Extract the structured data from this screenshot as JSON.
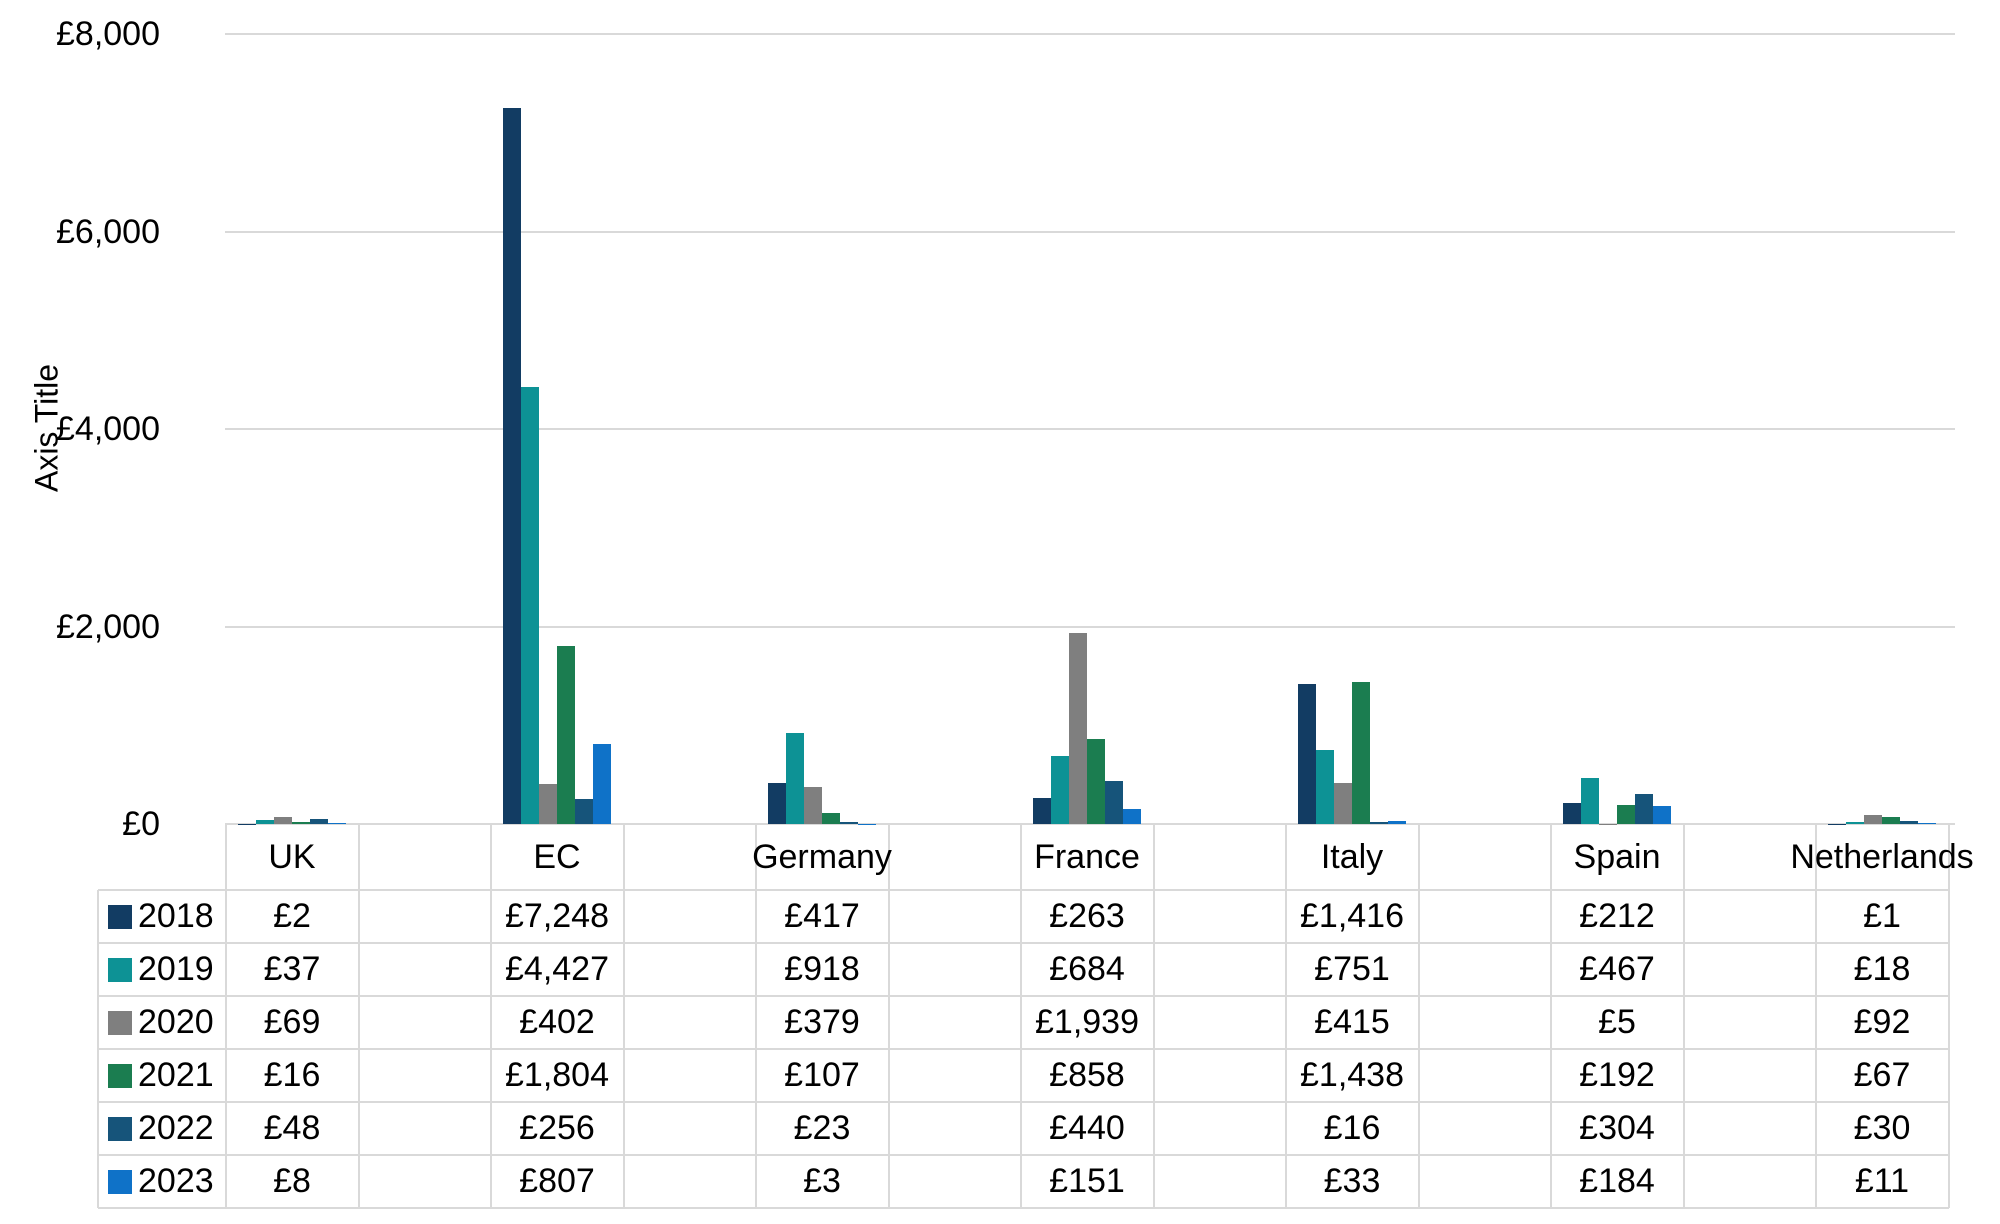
{
  "chart_data": {
    "type": "bar",
    "title": "",
    "ylabel": "Axis Title",
    "xlabel": "",
    "currency_prefix": "£",
    "categories": [
      "UK",
      "EC",
      "Germany",
      "France",
      "Italy",
      "Spain",
      "Netherlands"
    ],
    "series": [
      {
        "name": "2018",
        "color": "#123c63",
        "values": [
          2,
          7248,
          417,
          263,
          1416,
          212,
          1
        ]
      },
      {
        "name": "2019",
        "color": "#0d9295",
        "values": [
          37,
          4427,
          918,
          684,
          751,
          467,
          18
        ]
      },
      {
        "name": "2020",
        "color": "#7f7f7f",
        "values": [
          69,
          402,
          379,
          1939,
          415,
          5,
          92
        ]
      },
      {
        "name": "2021",
        "color": "#1b7d50",
        "values": [
          16,
          1804,
          107,
          858,
          1438,
          192,
          67
        ]
      },
      {
        "name": "2022",
        "color": "#16547a",
        "values": [
          48,
          256,
          23,
          440,
          16,
          304,
          30
        ]
      },
      {
        "name": "2023",
        "color": "#0f72c8",
        "values": [
          8,
          807,
          3,
          151,
          33,
          184,
          11
        ]
      }
    ],
    "y_axis": {
      "min": 0,
      "max": 8000,
      "tick_step": 2000,
      "tick_labels": [
        "£0",
        "£2,000",
        "£4,000",
        "£6,000",
        "£8,000"
      ]
    },
    "grid": true,
    "legend_position": "data-table-left",
    "table_value_format": "currency-no-decimals"
  }
}
